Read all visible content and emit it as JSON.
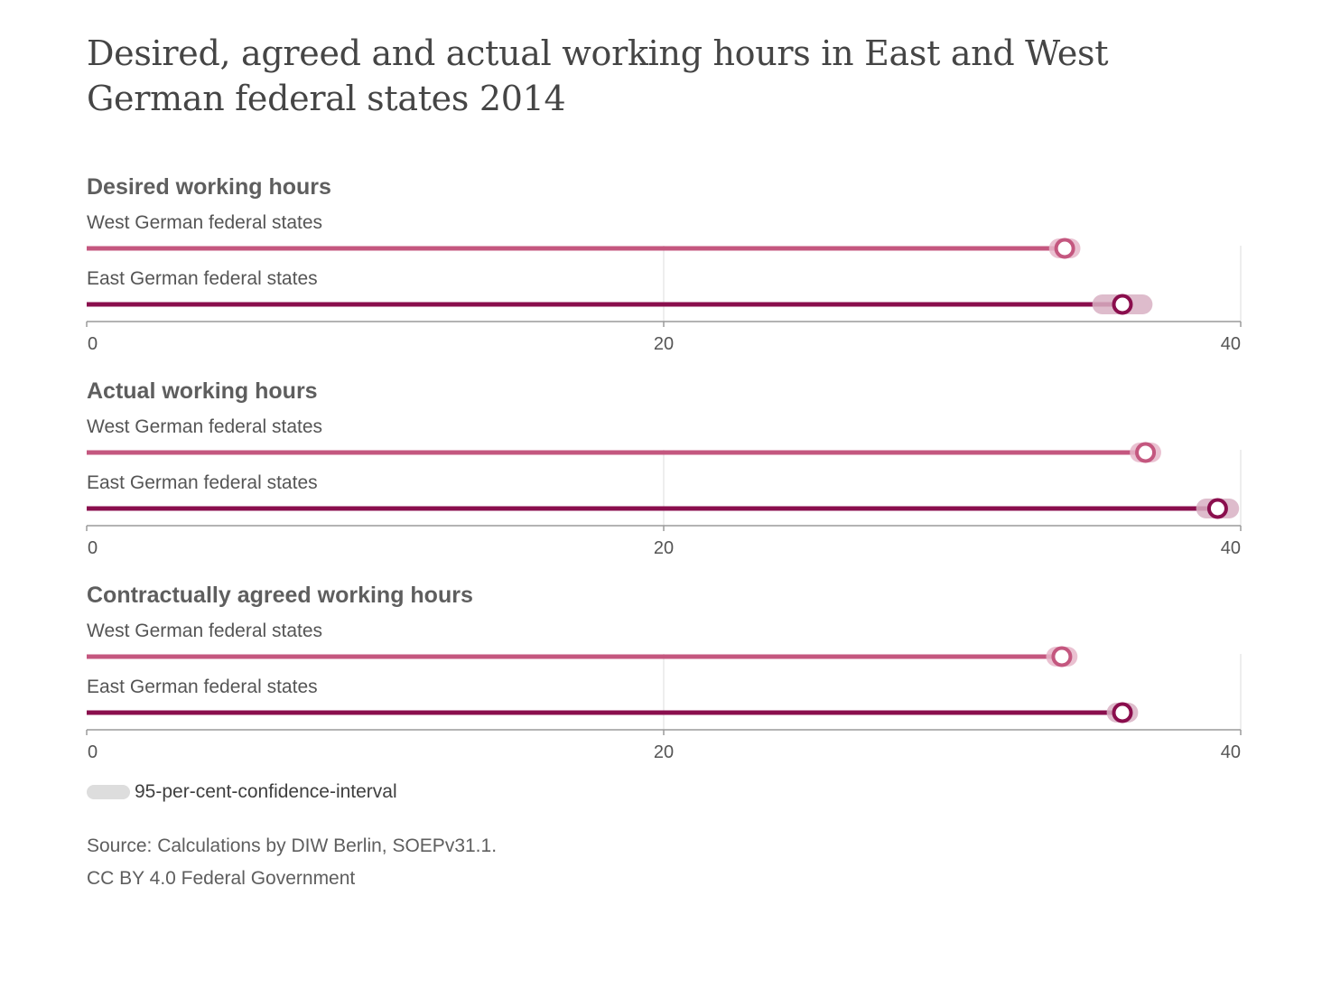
{
  "title": "Desired, agreed and actual working hours in East and West German federal states 2014",
  "colors": {
    "west": "#c4577f",
    "east": "#8a0e4d",
    "west_ci": "#e6b6c9",
    "east_ci": "#d8b0c3",
    "legend_ci": "#dddddd",
    "grid": "#e2e2e2",
    "axis": "#9a9a9a"
  },
  "chart_data": {
    "type": "dot-plot",
    "xlim": [
      0,
      40
    ],
    "xticks": [
      "0",
      "20",
      "40"
    ],
    "grid": true,
    "panels": [
      {
        "title": "Desired working hours",
        "series": [
          {
            "name": "West German federal states",
            "value": 33.9,
            "ci": [
              33.7,
              34.1
            ]
          },
          {
            "name": "East German federal states",
            "value": 35.9,
            "ci": [
              35.2,
              36.6
            ]
          }
        ]
      },
      {
        "title": "Actual working hours",
        "series": [
          {
            "name": "West German federal states",
            "value": 36.7,
            "ci": [
              36.5,
              36.9
            ]
          },
          {
            "name": "East German federal states",
            "value": 39.2,
            "ci": [
              38.8,
              39.6
            ]
          }
        ]
      },
      {
        "title": "Contractually agreed working hours",
        "series": [
          {
            "name": "West German federal states",
            "value": 33.8,
            "ci": [
              33.6,
              34.0
            ]
          },
          {
            "name": "East German federal states",
            "value": 35.9,
            "ci": [
              35.7,
              36.1
            ]
          }
        ]
      }
    ]
  },
  "legend": {
    "label": "95-per-cent-confidence-interval"
  },
  "source": {
    "line1": "Source: Calculations by DIW Berlin, SOEPv31.1.",
    "line2": "CC BY 4.0 Federal Government"
  }
}
